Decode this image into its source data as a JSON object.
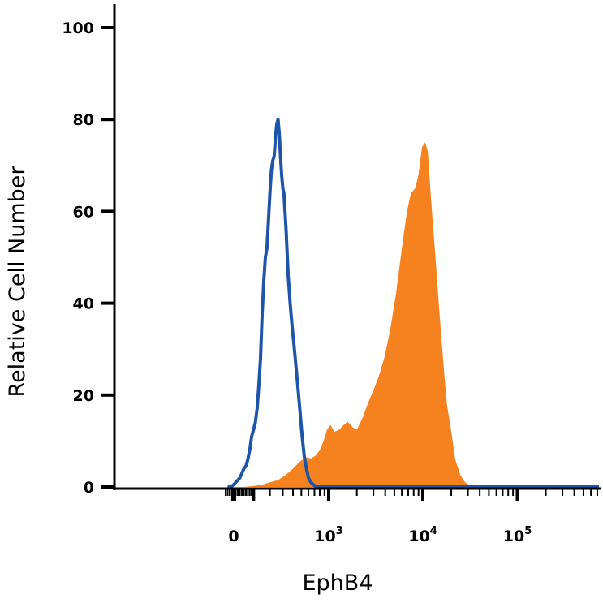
{
  "chart_data": {
    "type": "area",
    "title": "",
    "xlabel": "EphB4",
    "ylabel": "Relative Cell Number",
    "x_scale": "biexponential (log above ~10^2)",
    "ylim": [
      0,
      100
    ],
    "y_ticks": [
      0,
      20,
      40,
      60,
      80,
      100
    ],
    "x_ticks": [
      {
        "base": "0",
        "exp": ""
      },
      {
        "base": "10",
        "exp": "3"
      },
      {
        "base": "10",
        "exp": "4"
      },
      {
        "base": "10",
        "exp": "5"
      }
    ],
    "x_tick_values": [
      0,
      1000,
      10000,
      100000
    ],
    "grid": false,
    "series": [
      {
        "fill": "#f5821f",
        "style": "filled",
        "x": [
          -30,
          0,
          50,
          100,
          150,
          200,
          260,
          320,
          400,
          480,
          560,
          640,
          720,
          800,
          880,
          960,
          1050,
          1150,
          1300,
          1450,
          1600,
          1800,
          2000,
          2300,
          2600,
          3000,
          3400,
          3900,
          4500,
          5200,
          6000,
          6800,
          7500,
          8300,
          9000,
          9800,
          10600,
          11300,
          12000,
          12800,
          13600,
          14500,
          15500,
          16800,
          18000,
          20000,
          22000,
          25000,
          28000,
          32000,
          36000,
          40000,
          50000,
          70000,
          100000,
          200000,
          400000,
          800000
        ],
        "y": [
          0,
          0,
          0,
          0.2,
          0.5,
          1,
          1.5,
          2.5,
          4,
          5.5,
          6.5,
          6.2,
          6.8,
          8,
          10,
          12.5,
          13.5,
          12,
          12.5,
          13.5,
          14.2,
          13,
          12.5,
          15,
          18,
          21,
          24,
          28,
          34,
          42,
          52,
          60,
          64,
          65,
          68,
          74,
          75,
          73,
          65,
          57,
          50,
          42,
          34,
          25,
          18,
          12,
          6,
          2.5,
          1,
          0.3,
          0,
          0,
          0,
          0,
          0,
          0,
          0,
          0
        ]
      },
      {
        "stroke": "#1f55a8",
        "style": "outline",
        "x": [
          -30,
          -15,
          0,
          10,
          20,
          30,
          40,
          50,
          60,
          70,
          80,
          90,
          100,
          110,
          120,
          130,
          140,
          150,
          160,
          170,
          180,
          190,
          200,
          210,
          220,
          230,
          240,
          250,
          260,
          270,
          280,
          290,
          300,
          310,
          330,
          350,
          370,
          390,
          410,
          430,
          450,
          480,
          510,
          540,
          570,
          600,
          640,
          680,
          720,
          760,
          800,
          850,
          900,
          950,
          1000,
          1100,
          1200,
          1400,
          1600,
          2000,
          3000,
          5000,
          10000,
          100000,
          800000
        ],
        "y": [
          0,
          0,
          0.5,
          1,
          1.5,
          2,
          3,
          4,
          4.5,
          6,
          8,
          11,
          12.5,
          14,
          17,
          22,
          28,
          38,
          45,
          50,
          52,
          58,
          64,
          69,
          71,
          72,
          76,
          79,
          80,
          77,
          72,
          68,
          65,
          64,
          56,
          46,
          40,
          35,
          31,
          27,
          23,
          17,
          11,
          6.5,
          4,
          2,
          1,
          0.5,
          0.2,
          0.1,
          0.1,
          0,
          0,
          0,
          0,
          0,
          0,
          0,
          0,
          0,
          0,
          0,
          0,
          0,
          0
        ]
      }
    ]
  }
}
